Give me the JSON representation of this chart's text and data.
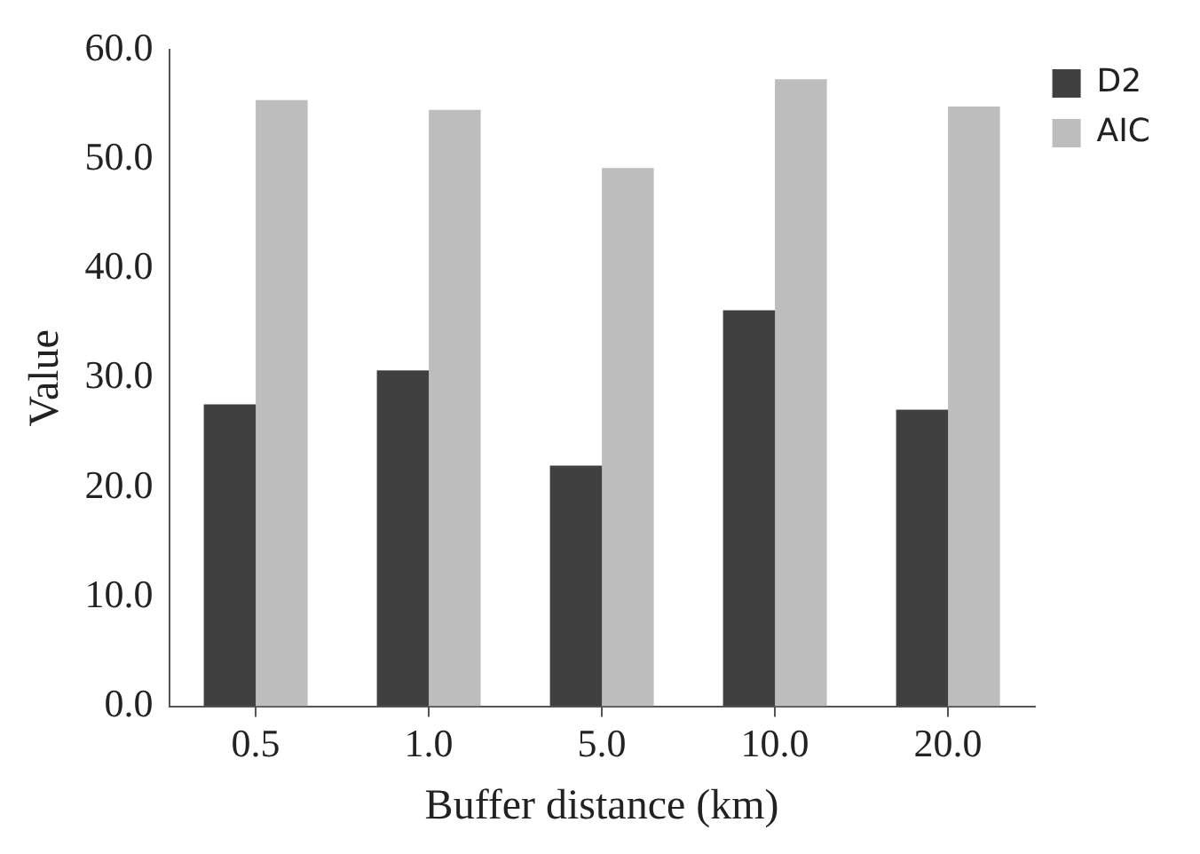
{
  "chart_data": {
    "type": "bar",
    "xlabel": "Buffer distance (km)",
    "ylabel": "Value",
    "categories": [
      "0.5",
      "1.0",
      "5.0",
      "10.0",
      "20.0"
    ],
    "series": [
      {
        "name": "D2",
        "color": "#404040",
        "values": [
          27.6,
          30.7,
          22.0,
          36.2,
          27.1
        ]
      },
      {
        "name": "AIC",
        "color": "#bdbdbd",
        "values": [
          55.4,
          54.5,
          49.2,
          57.3,
          54.8
        ]
      }
    ],
    "ylim": [
      0,
      60
    ],
    "yticks": [
      {
        "value": 0,
        "label": "0.0"
      },
      {
        "value": 10,
        "label": "10.0"
      },
      {
        "value": 20,
        "label": "20.0"
      },
      {
        "value": 30,
        "label": "30.0"
      },
      {
        "value": 40,
        "label": "40.0"
      },
      {
        "value": 50,
        "label": "50.0"
      },
      {
        "value": 60,
        "label": "60.0"
      }
    ],
    "grid": false,
    "legend": "top right"
  }
}
